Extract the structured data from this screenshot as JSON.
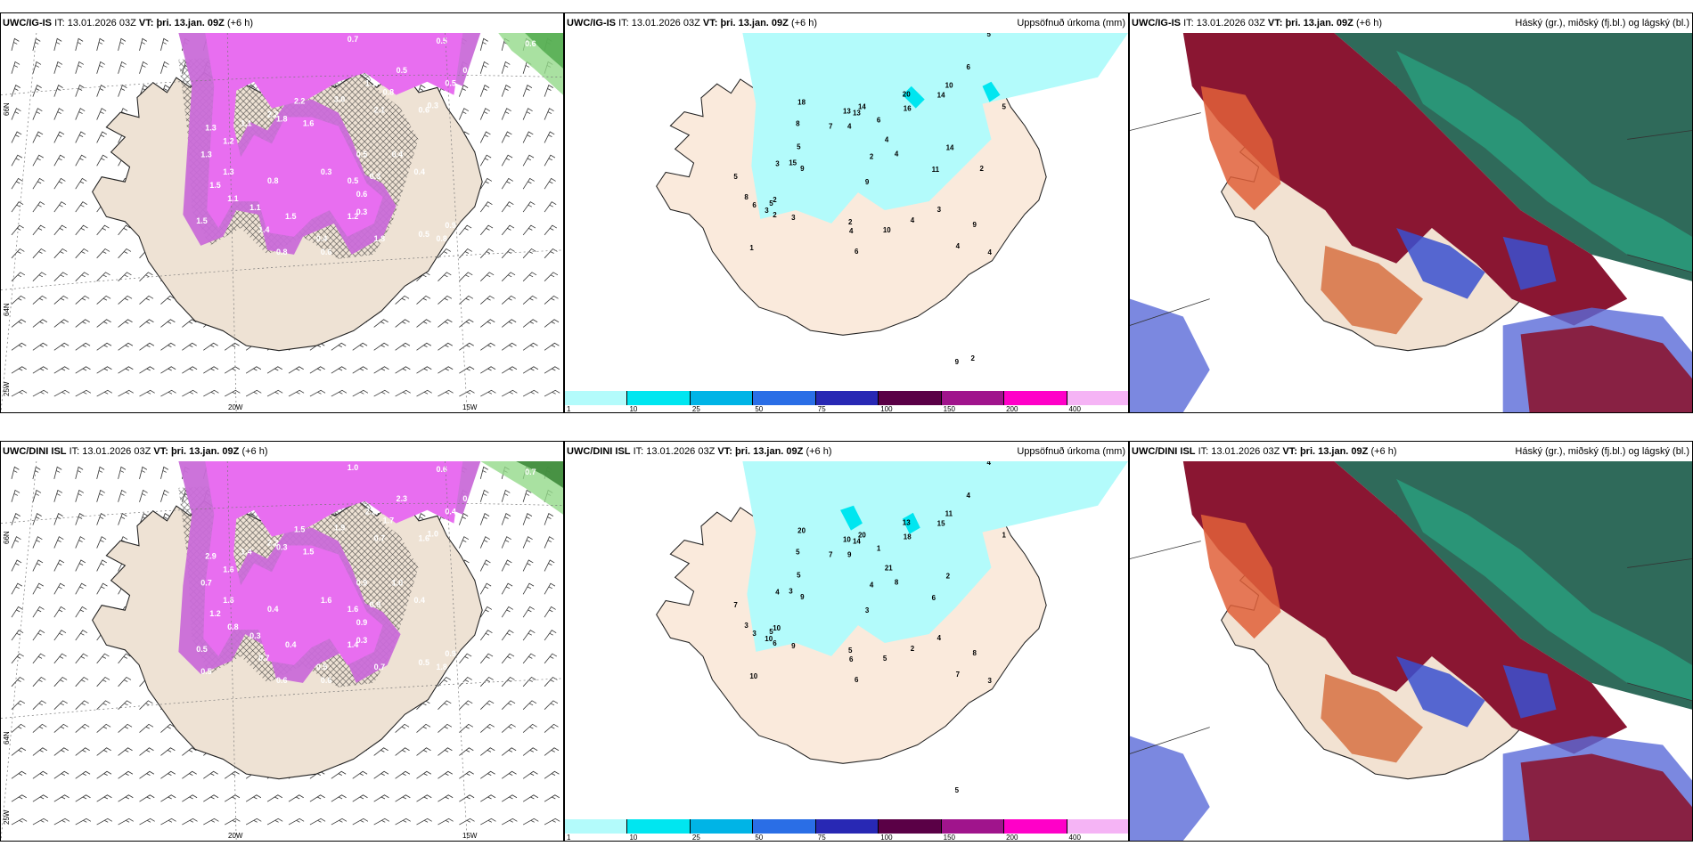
{
  "rows": [
    {
      "model": "UWC/IG-IS",
      "it_label": "IT:",
      "it_value": "13.01.2026 03Z",
      "vt_label": "VT:",
      "vt_value": "þri. 13.jan. 09Z",
      "lead": "(+6 h)"
    },
    {
      "model": "UWC/DINI ISL",
      "it_label": "IT:",
      "it_value": "13.01.2026 03Z",
      "vt_label": "VT:",
      "vt_value": "þri. 13.jan. 09Z",
      "lead": "(+6 h)"
    }
  ],
  "precip_title": "Uppsöfnuð úrkoma (mm)",
  "cloud_title": "Háský (gr.), miðský (fj.bl.) og lágský (bl.)",
  "axis": {
    "lat66": "66N",
    "lat64": "64N",
    "lon25": "25W",
    "lon20": "20W",
    "lon15": "15W"
  },
  "legend": {
    "ticks": [
      "1",
      "10",
      "25",
      "50",
      "75",
      "100",
      "150",
      "200",
      "400"
    ],
    "colors": [
      "#b3fbfb",
      "#00e6f0",
      "#00b4e6",
      "#2a6ee6",
      "#2828b4",
      "#5a0046",
      "#a0148c",
      "#ff00c8",
      "#f5b4f5"
    ]
  },
  "top_precip_values": [
    "5",
    "6",
    "10",
    "20",
    "16",
    "14",
    "18",
    "14",
    "13",
    "13",
    "6",
    "8",
    "7",
    "4",
    "4",
    "5",
    "15",
    "14",
    "9",
    "4",
    "2",
    "3",
    "5",
    "8",
    "9",
    "11",
    "4",
    "5",
    "2",
    "5",
    "6",
    "3",
    "2",
    "3",
    "2",
    "10",
    "4",
    "6",
    "4",
    "3",
    "4",
    "9",
    "1",
    "9",
    "2",
    "2"
  ],
  "bottom_precip_values": [
    "4",
    "4",
    "11",
    "13",
    "18",
    "15",
    "20",
    "20",
    "14",
    "10",
    "1",
    "5",
    "7",
    "9",
    "21",
    "5",
    "3",
    "2",
    "9",
    "8",
    "4",
    "4",
    "7",
    "3",
    "3",
    "6",
    "3",
    "1",
    "10",
    "5",
    "3",
    "10",
    "6",
    "9",
    "5",
    "5",
    "6",
    "6",
    "2",
    "4",
    "7",
    "8",
    "10",
    "5"
  ],
  "top_snow_values": [
    "0.7",
    "0.5",
    "0.4",
    "0.6",
    "0.5",
    "0.3",
    "0.6",
    "0.8",
    "0.5",
    "1.1",
    "1.3",
    "1.2",
    "1.1",
    "2.2",
    "3.0",
    "2.1",
    "0.3",
    "1.8",
    "1.3",
    "2.2",
    "1.6",
    "1.3",
    "0.5",
    "0.4",
    "1.5",
    "1.1",
    "0.4",
    "0.3",
    "0.5",
    "0.3",
    "1.5",
    "0.8",
    "0.3",
    "0.6",
    "1.4",
    "1.5",
    "0.4",
    "0.8",
    "1.2",
    "1.8",
    "0.6",
    "0.5",
    "0.8",
    "0.9",
    "1.1"
  ],
  "bottom_snow_values": [
    "1.0",
    "0.6",
    "0.5",
    "0.7",
    "0.4",
    "1.1",
    "1.6",
    "1.7",
    "2.3",
    "2.2",
    "2.9",
    "1.6",
    "1.4",
    "1.5",
    "1.9",
    "0.7",
    "1.0",
    "0.3",
    "0.7",
    "2.2",
    "1.5",
    "1.6",
    "0.9",
    "0.4",
    "1.2",
    "0.8",
    "1.0",
    "0.9",
    "1.6",
    "0.3",
    "0.5",
    "0.4",
    "1.6",
    "0.9",
    "0.7",
    "0.4",
    "0.5",
    "0.6",
    "1.4",
    "0.7",
    "0.6",
    "0.5",
    "1.8",
    "0.9",
    "0.3",
    "0.5",
    "1.7"
  ]
}
